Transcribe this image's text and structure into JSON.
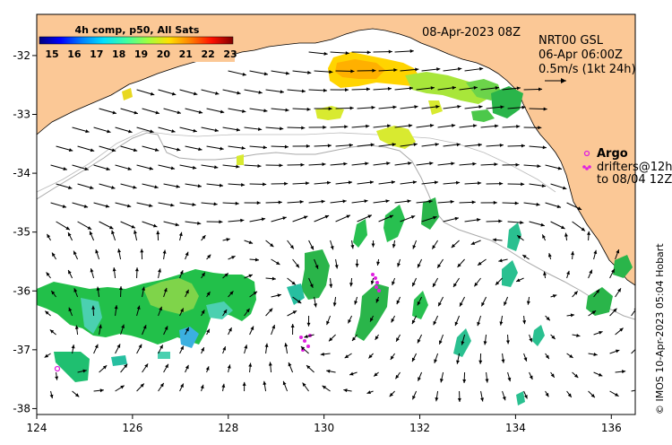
{
  "map": {
    "title": "08-Apr-2023 08Z",
    "product": "NRT00 GSL",
    "valid_time": "06-Apr 06:00Z",
    "vector_scale": "0.5m/s (1kt 24h)",
    "credit": "© IMOS 10-Apr-2023 05:04 Hobart",
    "lon_ticks": [
      "124",
      "126",
      "128",
      "130",
      "132",
      "134",
      "136"
    ],
    "lat_ticks": [
      "-32",
      "-33",
      "-34",
      "-35",
      "-36",
      "-37",
      "-38"
    ],
    "lon_range": [
      124,
      136.5
    ],
    "lat_range": [
      -38.1,
      -31.3
    ]
  },
  "colorbar": {
    "title": "4h comp, p50, All Sats",
    "ticks": [
      "15",
      "16",
      "17",
      "18",
      "19",
      "20",
      "21",
      "22",
      "23"
    ],
    "colors": [
      "#00007f",
      "#0000ff",
      "#0080ff",
      "#00e0ff",
      "#40ff9f",
      "#9fff40",
      "#ffe000",
      "#ff8000",
      "#ff1000",
      "#7f0000"
    ]
  },
  "legend": {
    "argo_label": "Argo",
    "drifter_line1": "drifters@12h",
    "drifter_line2": "to 08/04 12Z"
  },
  "colors": {
    "land": "#fbc896",
    "ocean": "#ffffff",
    "argo": "#e020e0",
    "isobath": "#aaaaaa"
  }
}
